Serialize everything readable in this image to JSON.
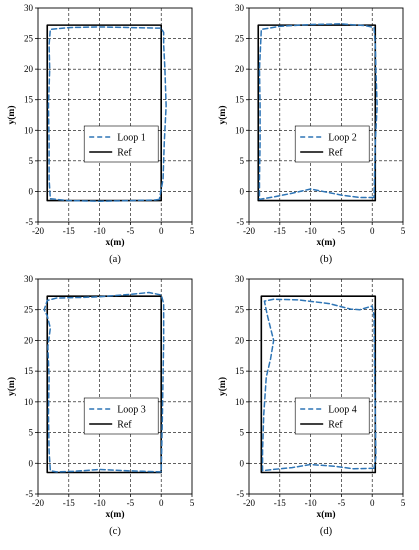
{
  "chart_data": [
    {
      "type": "line",
      "caption": "(a)",
      "xlabel": "x(m)",
      "ylabel": "y(m)",
      "xlim": [
        -20,
        5
      ],
      "ylim": [
        -5,
        30
      ],
      "xticks": [
        "-20",
        "-15",
        "-10",
        "-5",
        "0",
        "5"
      ],
      "yticks": [
        "-5",
        "0",
        "5",
        "10",
        "15",
        "20",
        "25",
        "30"
      ],
      "grid": true,
      "legend_position": "lower-center",
      "series": [
        {
          "name": "Loop 1",
          "style": "dashed",
          "color": "#2e75b6",
          "x": [
            -0.3,
            -1,
            -5,
            -10,
            -15,
            -18,
            -18.2,
            -18.2,
            -18.3,
            -18.1,
            -18.2,
            -18,
            -15,
            -10,
            -5,
            0,
            0.4,
            0.4,
            0.6,
            0.8,
            0.5,
            0.3,
            -0.3
          ],
          "y": [
            -1.3,
            -1.4,
            -1.5,
            -1.6,
            -1.5,
            -1.2,
            2,
            8,
            14,
            20,
            24,
            26.5,
            26.8,
            26.9,
            26.8,
            26.7,
            26,
            24,
            20,
            14,
            8,
            2,
            -1.3
          ]
        },
        {
          "name": "Ref",
          "style": "solid",
          "color": "#000000",
          "x": [
            0,
            -18.5,
            -18.5,
            0,
            0
          ],
          "y": [
            -1.5,
            -1.5,
            27.2,
            27.2,
            -1.5
          ]
        }
      ]
    },
    {
      "type": "line",
      "caption": "(b)",
      "xlabel": "x(m)",
      "ylabel": "y(m)",
      "xlim": [
        -20,
        5
      ],
      "ylim": [
        -5,
        30
      ],
      "xticks": [
        "-20",
        "-15",
        "-10",
        "-5",
        "0",
        "5"
      ],
      "yticks": [
        "-5",
        "0",
        "5",
        "10",
        "15",
        "20",
        "25",
        "30"
      ],
      "grid": true,
      "legend_position": "lower-center",
      "series": [
        {
          "name": "Loop 2",
          "style": "dashed",
          "color": "#2e75b6",
          "x": [
            0.3,
            -2,
            -5,
            -8,
            -10,
            -13,
            -16,
            -18.3,
            -18.3,
            -18.2,
            -18.2,
            -18.3,
            -18,
            -15,
            -10,
            -5,
            -1,
            0.3,
            0.5,
            0.6,
            0.8,
            0.5,
            0.3
          ],
          "y": [
            -1,
            -1,
            -0.6,
            0,
            0.4,
            -0.3,
            -0.9,
            -1.3,
            2,
            8,
            14,
            20,
            26.5,
            27,
            27.3,
            27.4,
            27.1,
            26.8,
            24,
            20,
            14,
            8,
            -1
          ]
        },
        {
          "name": "Ref",
          "style": "solid",
          "color": "#000000",
          "x": [
            0.5,
            -18.5,
            -18.5,
            0.5,
            0.5
          ],
          "y": [
            -1.5,
            -1.5,
            27.2,
            27.2,
            -1.5
          ]
        }
      ]
    },
    {
      "type": "line",
      "caption": "(c)",
      "xlabel": "x(m)",
      "ylabel": "y(m)",
      "xlim": [
        -20,
        5
      ],
      "ylim": [
        -5,
        30
      ],
      "xticks": [
        "-20",
        "-15",
        "-10",
        "-5",
        "0",
        "5"
      ],
      "yticks": [
        "-5",
        "0",
        "5",
        "10",
        "15",
        "20",
        "25",
        "30"
      ],
      "grid": true,
      "legend_position": "lower-center",
      "series": [
        {
          "name": "Loop 3",
          "style": "dashed",
          "color": "#2e75b6",
          "x": [
            0,
            -3,
            -6,
            -10,
            -14,
            -17,
            -18,
            -18.2,
            -18.3,
            -18.2,
            -18.4,
            -18,
            -18.5,
            -19,
            -18.5,
            -17,
            -13,
            -10,
            -5,
            -2,
            0,
            0.4,
            0.4,
            0.2,
            0
          ],
          "y": [
            -1.4,
            -1.3,
            -1.2,
            -1,
            -1.3,
            -1.4,
            -1.2,
            2,
            8,
            14,
            19,
            22,
            24,
            25,
            26.5,
            26.9,
            27,
            27.1,
            27.5,
            27.8,
            27.4,
            26,
            20,
            8,
            -1.4
          ]
        },
        {
          "name": "Ref",
          "style": "solid",
          "color": "#000000",
          "x": [
            0,
            -18.5,
            -18.5,
            0,
            0
          ],
          "y": [
            -1.5,
            -1.5,
            27.2,
            27.2,
            -1.5
          ]
        }
      ]
    },
    {
      "type": "line",
      "caption": "(d)",
      "xlabel": "x(m)",
      "ylabel": "y(m)",
      "xlim": [
        -20,
        5
      ],
      "ylim": [
        -5,
        30
      ],
      "xticks": [
        "-20",
        "-15",
        "-10",
        "-5",
        "0",
        "5"
      ],
      "yticks": [
        "-5",
        "0",
        "5",
        "10",
        "15",
        "20",
        "25",
        "30"
      ],
      "grid": true,
      "legend_position": "lower-center",
      "series": [
        {
          "name": "Loop 4",
          "style": "dashed",
          "color": "#2e75b6",
          "x": [
            0.3,
            -3,
            -6,
            -10,
            -13,
            -16,
            -17.8,
            -17.8,
            -17.6,
            -17.2,
            -16.5,
            -16,
            -17,
            -17.5,
            -16,
            -12,
            -7,
            -3.5,
            -2,
            0,
            0.3,
            0.4,
            0.5,
            0.6,
            0.3
          ],
          "y": [
            -0.8,
            -0.9,
            -0.5,
            -0.2,
            -0.7,
            -1,
            -1.2,
            2,
            8,
            14,
            17,
            20,
            24,
            26.4,
            26.7,
            26.6,
            26,
            25.1,
            25,
            25.6,
            24,
            14,
            8,
            1,
            -0.8
          ]
        },
        {
          "name": "Ref",
          "style": "solid",
          "color": "#000000",
          "x": [
            0.5,
            -18,
            -18,
            0.5,
            0.5
          ],
          "y": [
            -1.5,
            -1.5,
            27.2,
            27.2,
            -1.5
          ]
        }
      ]
    }
  ]
}
